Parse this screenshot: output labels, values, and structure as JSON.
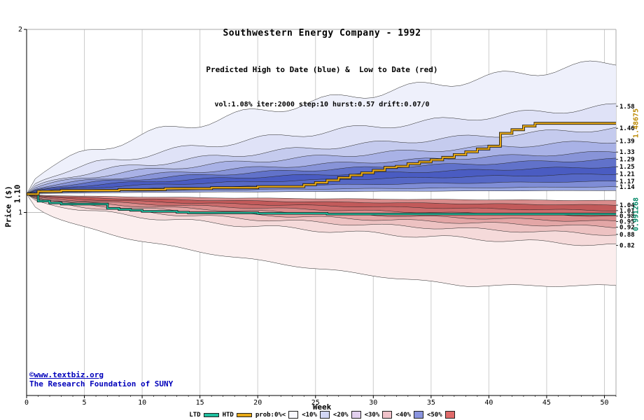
{
  "header": {
    "title": "Southwestern Energy Company - 1992",
    "subtitle": "Predicted High to Date (blue) &  Low to Date (red)",
    "params": "vol:1.08% iter:2000 step:10 hurst:0.57 drift:0.07/0"
  },
  "axes": {
    "y_label": "Price ($)",
    "x_label": "Week",
    "start_label": "1.10"
  },
  "annotations": {
    "htd_final": "1.48675",
    "htd_color": "#bb8800",
    "ltd_final": "0.991268",
    "ltd_color": "#008866"
  },
  "watermark": {
    "line1": "©www.textbiz.org",
    "line2": "The Research Foundation of SUNY",
    "color": "#0000bb"
  },
  "legend": {
    "prefix_ltd": "LTD",
    "prefix_htd": "HTD",
    "items": [
      {
        "label": "prob:0%<",
        "color": "#f8f8fe"
      },
      {
        "label": "<10%",
        "color": "#d2d6f4"
      },
      {
        "label": "<20%",
        "color": "#e2d0ee"
      },
      {
        "label": "<30%",
        "color": "#f0c2ca"
      },
      {
        "label": "<40%",
        "color": "#8a94de"
      },
      {
        "label": "<50%",
        "color": "#e06a6a"
      }
    ]
  },
  "chart_data": {
    "type": "area",
    "title": "Southwestern Energy Company - 1992",
    "subtitle": "Predicted High to Date (blue) &  Low to Date (red)",
    "params_label": "vol:1.08% iter:2000 step:10 hurst:0.57 drift:0.07/0",
    "xlabel": "Week",
    "ylabel": "Price ($)",
    "x_domain": [
      0,
      51
    ],
    "y_domain": [
      0,
      2
    ],
    "x_ticks": [
      0,
      5,
      10,
      15,
      20,
      25,
      30,
      35,
      40,
      45,
      50
    ],
    "y_ticks": [
      {
        "value": 1,
        "label": "1"
      },
      {
        "value": 2,
        "label": "2"
      }
    ],
    "right_axis_labels": [
      1.58,
      1.46,
      1.39,
      1.33,
      1.29,
      1.25,
      1.21,
      1.17,
      1.14,
      1.04,
      1.01,
      0.98,
      0.95,
      0.92,
      0.88,
      0.82
    ],
    "start_price": 1.1,
    "grid_color": "#cccccc",
    "blue_fan": {
      "edges": [
        1.12,
        1.14,
        1.17,
        1.21,
        1.25,
        1.29,
        1.33,
        1.39,
        1.46,
        1.58,
        1.82
      ],
      "fills": [
        "#9ba8e2",
        "#7f8dd6",
        "#5668c6",
        "#4a5cc2",
        "#6172ca",
        "#8894d8",
        "#a9b2e6",
        "#c5cbee",
        "#dfe2f7",
        "#eef0fb"
      ]
    },
    "red_fan": {
      "edges": [
        1.065,
        1.04,
        1.01,
        0.98,
        0.95,
        0.92,
        0.88,
        0.82,
        0.6
      ],
      "fills": [
        "#d98c8c",
        "#c25a5a",
        "#cc6c6c",
        "#d98c8c",
        "#e3a6a6",
        "#edc2c2",
        "#f5dada",
        "#fbeeee"
      ]
    },
    "htd": {
      "name": "HTD",
      "color": "#e6a817",
      "final": 1.48675,
      "points": [
        [
          0,
          1.1
        ],
        [
          1,
          1.115
        ],
        [
          3,
          1.12
        ],
        [
          8,
          1.125
        ],
        [
          12,
          1.13
        ],
        [
          16,
          1.135
        ],
        [
          20,
          1.141
        ],
        [
          24,
          1.152
        ],
        [
          25,
          1.163
        ],
        [
          26,
          1.176
        ],
        [
          27,
          1.19
        ],
        [
          28,
          1.203
        ],
        [
          29,
          1.216
        ],
        [
          30,
          1.23
        ],
        [
          31,
          1.246
        ],
        [
          32,
          1.252
        ],
        [
          33,
          1.266
        ],
        [
          34,
          1.276
        ],
        [
          35,
          1.287
        ],
        [
          36,
          1.301
        ],
        [
          37,
          1.316
        ],
        [
          38,
          1.331
        ],
        [
          39,
          1.347
        ],
        [
          40,
          1.362
        ],
        [
          41,
          1.432
        ],
        [
          42,
          1.452
        ],
        [
          43,
          1.472
        ],
        [
          44,
          1.48675
        ],
        [
          51,
          1.48675
        ]
      ]
    },
    "ltd": {
      "name": "LTD",
      "color": "#1fbf9f",
      "final": 0.991268,
      "points": [
        [
          0,
          1.1
        ],
        [
          1,
          1.062
        ],
        [
          2,
          1.052
        ],
        [
          3,
          1.046
        ],
        [
          6,
          1.046
        ],
        [
          7,
          1.022
        ],
        [
          8,
          1.016
        ],
        [
          9,
          1.012
        ],
        [
          10,
          1.006
        ],
        [
          13,
          1.001
        ],
        [
          14,
          0.998
        ],
        [
          20,
          0.995
        ],
        [
          26,
          0.9913
        ],
        [
          51,
          0.991268
        ]
      ]
    }
  }
}
